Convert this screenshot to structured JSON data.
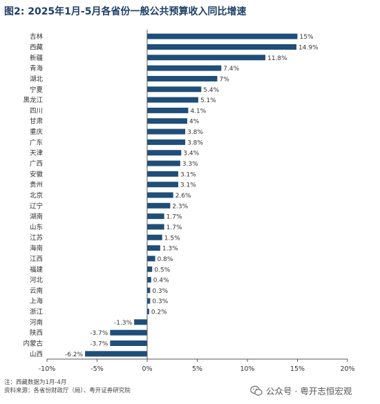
{
  "chart_data": {
    "type": "bar",
    "orientation": "horizontal",
    "title": "图2: 2025年1月-5月各省份一般公共预算收入同比增速",
    "categories": [
      "吉林",
      "西藏",
      "新疆",
      "青海",
      "湖北",
      "宁夏",
      "黑龙江",
      "四川",
      "甘肃",
      "重庆",
      "广东",
      "天津",
      "广西",
      "安徽",
      "贵州",
      "北京",
      "辽宁",
      "湖南",
      "山东",
      "江苏",
      "海南",
      "江西",
      "福建",
      "河北",
      "云南",
      "上海",
      "浙江",
      "河南",
      "陕西",
      "内蒙古",
      "山西"
    ],
    "values": [
      15,
      14.9,
      11.8,
      7.4,
      7,
      5.4,
      5.1,
      4.1,
      4,
      3.8,
      3.8,
      3.4,
      3.3,
      3.1,
      3.1,
      2.6,
      2.3,
      1.7,
      1.7,
      1.5,
      1.3,
      0.8,
      0.5,
      0.4,
      0.3,
      0.3,
      0.2,
      -1.3,
      -3.7,
      -3.7,
      -6.2
    ],
    "value_labels": [
      "15%",
      "14.9%",
      "11.8%",
      "7.4%",
      "7%",
      "5.4%",
      "5.1%",
      "4.1%",
      "4%",
      "3.8%",
      "3.8%",
      "3.4%",
      "3.3%",
      "3.1%",
      "3.1%",
      "2.6%",
      "2.3%",
      "1.7%",
      "1.7%",
      "1.5%",
      "1.3%",
      "0.8%",
      "0.5%",
      "0.4%",
      "0.3%",
      "0.3%",
      "0.2%",
      "-1.3%",
      "-3.7%",
      "-3.7%",
      "-6.2%"
    ],
    "xlim": [
      -10,
      20
    ],
    "xticks": [
      -10,
      -5,
      0,
      5,
      10,
      15,
      20
    ],
    "xtick_labels": [
      "-10%",
      "-5%",
      "0%",
      "5%",
      "10%",
      "15%",
      "20%"
    ],
    "bar_color": "#1f4e79",
    "grid": false
  },
  "notes": {
    "line1": "注：西藏数据为1月-4月",
    "line2": "资料来源：各省份财政厅（局）、粤开证券研究院"
  },
  "watermark": {
    "text": "公众号 · 粤开志恒宏观"
  }
}
